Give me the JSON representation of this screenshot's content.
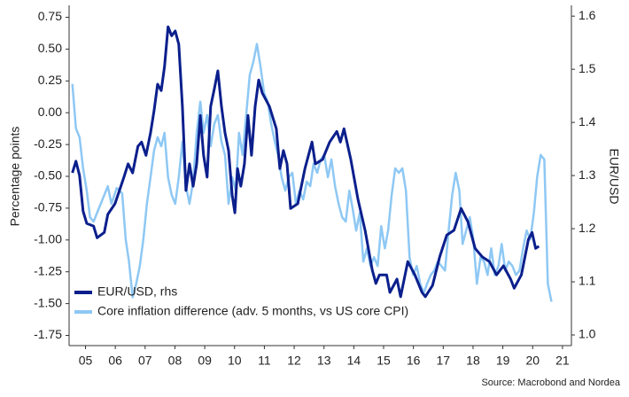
{
  "chart_data": {
    "type": "line",
    "ylabel": "Percentage points",
    "y2label": "EUR/USD",
    "source": "Source: Macrobond and Nordea",
    "legend": "lower left",
    "xlim": [
      2004.95,
      2021.8
    ],
    "xticks": [
      {
        "value": 2005.5,
        "label": "05"
      },
      {
        "value": 2006.5,
        "label": "06"
      },
      {
        "value": 2007.5,
        "label": "07"
      },
      {
        "value": 2008.5,
        "label": "08"
      },
      {
        "value": 2009.5,
        "label": "09"
      },
      {
        "value": 2010.5,
        "label": "10"
      },
      {
        "value": 2011.5,
        "label": "11"
      },
      {
        "value": 2012.5,
        "label": "12"
      },
      {
        "value": 2013.5,
        "label": "13"
      },
      {
        "value": 2014.5,
        "label": "14"
      },
      {
        "value": 2015.5,
        "label": "15"
      },
      {
        "value": 2016.5,
        "label": "16"
      },
      {
        "value": 2017.5,
        "label": "17"
      },
      {
        "value": 2018.5,
        "label": "18"
      },
      {
        "value": 2019.5,
        "label": "19"
      },
      {
        "value": 2020.5,
        "label": "20"
      },
      {
        "value": 2021.5,
        "label": "21"
      }
    ],
    "ylim": [
      -1.83,
      0.83
    ],
    "yticks": [
      0.75,
      {
        "value": 0.5,
        "label": "0.50"
      },
      0.25,
      {
        "value": 0,
        "label": "0.00"
      },
      -0.25,
      {
        "value": -0.5,
        "label": "-0.50"
      },
      -0.75,
      {
        "value": -1,
        "label": "-1.00"
      },
      -1.25,
      {
        "value": -1.5,
        "label": "-1.50"
      },
      -1.75
    ],
    "y2lim": [
      0.98,
      1.617
    ],
    "y2ticks": [
      1.6,
      1.5,
      1.4,
      1.3,
      1.2,
      1.1,
      {
        "value": 1.0,
        "label": "1.0"
      }
    ],
    "series": [
      {
        "name": "EUR/USD, rhs",
        "color": "#0b1f8c",
        "axis": "y2",
        "x": [
          2005.06,
          2005.18,
          2005.3,
          2005.42,
          2005.54,
          2005.77,
          2005.89,
          2006.13,
          2006.25,
          2006.49,
          2006.79,
          2006.93,
          2007.08,
          2007.26,
          2007.38,
          2007.53,
          2007.68,
          2007.8,
          2007.92,
          2008.04,
          2008.15,
          2008.27,
          2008.39,
          2008.51,
          2008.63,
          2008.75,
          2008.87,
          2008.99,
          2009.11,
          2009.23,
          2009.35,
          2009.46,
          2009.58,
          2009.7,
          2009.82,
          2009.94,
          2010.06,
          2010.18,
          2010.3,
          2010.42,
          2010.51,
          2010.6,
          2010.71,
          2010.83,
          2010.95,
          2011.07,
          2011.19,
          2011.31,
          2011.43,
          2011.67,
          2011.9,
          2012.02,
          2012.14,
          2012.26,
          2012.38,
          2012.62,
          2012.86,
          2013.1,
          2013.21,
          2013.45,
          2013.69,
          2013.93,
          2014.05,
          2014.17,
          2014.4,
          2014.64,
          2014.88,
          2015.12,
          2015.24,
          2015.36,
          2015.6,
          2015.71,
          2015.95,
          2016.07,
          2016.31,
          2016.55,
          2016.79,
          2016.9,
          2017.14,
          2017.38,
          2017.62,
          2017.86,
          2018.1,
          2018.33,
          2018.57,
          2018.81,
          2019.05,
          2019.29,
          2019.52,
          2019.76,
          2019.88,
          2020.12,
          2020.36,
          2020.48,
          2020.6,
          2020.71
        ],
        "values": [
          1.305,
          1.327,
          1.3,
          1.233,
          1.21,
          1.205,
          1.183,
          1.193,
          1.227,
          1.247,
          1.297,
          1.322,
          1.305,
          1.355,
          1.363,
          1.338,
          1.38,
          1.422,
          1.472,
          1.46,
          1.505,
          1.58,
          1.563,
          1.572,
          1.547,
          1.43,
          1.272,
          1.322,
          1.28,
          1.322,
          1.413,
          1.338,
          1.297,
          1.43,
          1.463,
          1.497,
          1.43,
          1.38,
          1.347,
          1.263,
          1.23,
          1.313,
          1.28,
          1.322,
          1.413,
          1.338,
          1.43,
          1.48,
          1.455,
          1.43,
          1.388,
          1.313,
          1.347,
          1.322,
          1.238,
          1.247,
          1.313,
          1.363,
          1.322,
          1.33,
          1.363,
          1.383,
          1.363,
          1.388,
          1.33,
          1.255,
          1.197,
          1.122,
          1.097,
          1.113,
          1.113,
          1.08,
          1.105,
          1.072,
          1.138,
          1.113,
          1.08,
          1.072,
          1.093,
          1.147,
          1.188,
          1.197,
          1.238,
          1.213,
          1.163,
          1.147,
          1.138,
          1.113,
          1.13,
          1.105,
          1.088,
          1.113,
          1.18,
          1.193,
          1.163,
          1.167
        ]
      },
      {
        "name": "Core inflation difference (adv. 5 months, vs US core CPI)",
        "color": "#8ec8f4",
        "x": [
          2005.06,
          2005.18,
          2005.3,
          2005.42,
          2005.54,
          2005.65,
          2005.77,
          2005.89,
          2006.01,
          2006.13,
          2006.25,
          2006.37,
          2006.55,
          2006.73,
          2006.85,
          2006.96,
          2007.08,
          2007.2,
          2007.32,
          2007.44,
          2007.56,
          2007.68,
          2007.8,
          2007.92,
          2008.04,
          2008.15,
          2008.27,
          2008.39,
          2008.51,
          2008.63,
          2008.75,
          2008.87,
          2008.99,
          2009.11,
          2009.23,
          2009.35,
          2009.46,
          2009.58,
          2009.7,
          2009.82,
          2009.94,
          2010.06,
          2010.18,
          2010.3,
          2010.42,
          2010.54,
          2010.65,
          2010.77,
          2010.89,
          2011.01,
          2011.13,
          2011.25,
          2011.37,
          2011.49,
          2011.61,
          2011.73,
          2011.85,
          2011.96,
          2012.08,
          2012.2,
          2012.32,
          2012.44,
          2012.56,
          2012.68,
          2012.8,
          2012.92,
          2013.04,
          2013.15,
          2013.27,
          2013.39,
          2013.51,
          2013.63,
          2013.75,
          2013.87,
          2013.99,
          2014.11,
          2014.23,
          2014.35,
          2014.46,
          2014.58,
          2014.7,
          2014.82,
          2014.94,
          2015.06,
          2015.18,
          2015.3,
          2015.42,
          2015.54,
          2015.65,
          2015.77,
          2015.89,
          2016.01,
          2016.13,
          2016.25,
          2016.37,
          2016.49,
          2016.61,
          2016.73,
          2016.85,
          2016.96,
          2017.08,
          2017.2,
          2017.32,
          2017.44,
          2017.56,
          2017.68,
          2017.8,
          2017.92,
          2018.04,
          2018.15,
          2018.27,
          2018.39,
          2018.51,
          2018.63,
          2018.75,
          2018.87,
          2018.99,
          2019.11,
          2019.23,
          2019.35,
          2019.46,
          2019.58,
          2019.7,
          2019.82,
          2019.94,
          2020.06,
          2020.18,
          2020.3,
          2020.42,
          2020.54,
          2020.65,
          2020.77,
          2020.89,
          2021.01,
          2021.13
        ],
        "values": [
          0.226,
          -0.123,
          -0.193,
          -0.437,
          -0.612,
          -0.821,
          -0.856,
          -0.786,
          -0.716,
          -0.647,
          -0.577,
          -0.716,
          -0.591,
          -0.633,
          -0.996,
          -1.17,
          -1.45,
          -1.345,
          -1.205,
          -0.996,
          -0.716,
          -0.507,
          -0.297,
          -0.193,
          -0.263,
          -0.158,
          -0.507,
          -0.647,
          -0.716,
          -0.507,
          -0.228,
          -0.577,
          -0.716,
          -0.542,
          -0.158,
          0.087,
          -0.158,
          -0.018,
          -0.263,
          -0.088,
          -0.018,
          -0.228,
          -0.332,
          -0.716,
          -0.507,
          -0.612,
          -0.158,
          -0.332,
          -0.018,
          0.296,
          0.401,
          0.54,
          0.366,
          0.156,
          0.087,
          -0.088,
          -0.228,
          -0.332,
          -0.507,
          -0.612,
          -0.507,
          -0.472,
          -0.716,
          -0.612,
          -0.682,
          -0.542,
          -0.577,
          -0.402,
          -0.472,
          -0.367,
          -0.332,
          -0.507,
          -0.367,
          -0.577,
          -0.716,
          -0.821,
          -0.856,
          -0.612,
          -0.751,
          -0.926,
          -0.786,
          -1.17,
          -1.066,
          -1.205,
          -1.136,
          -1.205,
          -0.891,
          -1.066,
          -0.926,
          -0.647,
          -0.437,
          -0.472,
          -0.437,
          -0.612,
          -1.136,
          -1.275,
          -1.205,
          -1.345,
          -1.415,
          -1.345,
          -1.275,
          -1.24,
          -1.17,
          -1.205,
          -1.24,
          -0.926,
          -0.647,
          -0.472,
          -0.612,
          -1.031,
          -0.926,
          -0.821,
          -0.996,
          -1.345,
          -1.136,
          -1.17,
          -1.275,
          -1.066,
          -1.275,
          -1.205,
          -1.031,
          -1.24,
          -1.17,
          -1.205,
          -1.275,
          -1.24,
          -1.066,
          -0.926,
          -0.996,
          -0.786,
          -0.507,
          -0.332,
          -0.367,
          -1.345,
          -1.485
        ]
      }
    ]
  }
}
